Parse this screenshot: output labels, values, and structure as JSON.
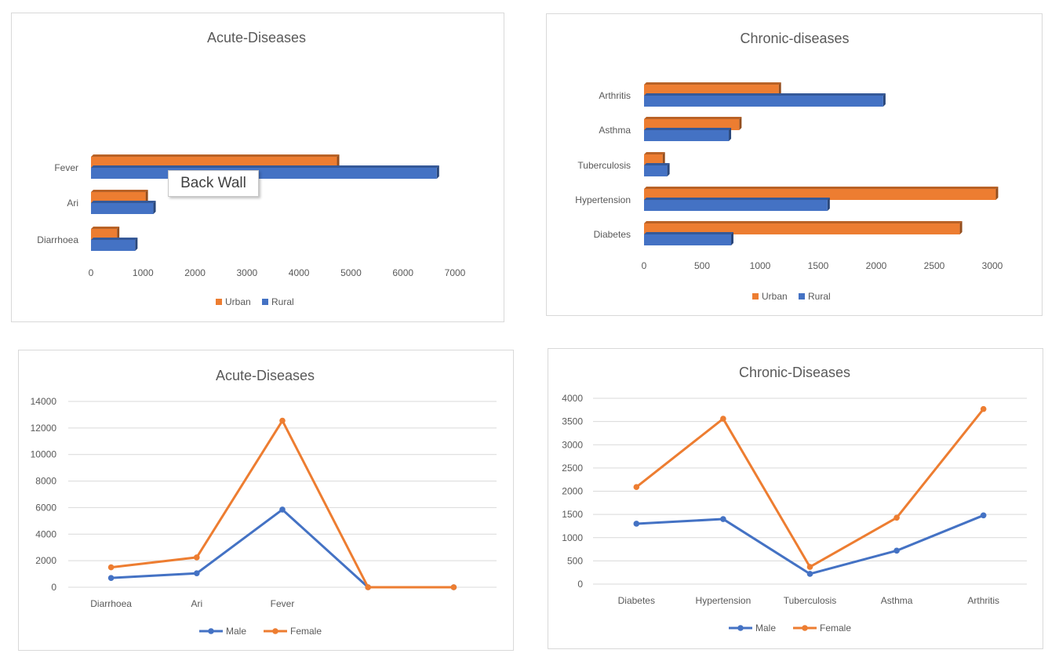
{
  "colors": {
    "rural": "#4472c4",
    "urban": "#ed7d31",
    "male": "#4472c4",
    "female": "#ed7d31",
    "grid": "#d9d9d9",
    "text": "#595959"
  },
  "tooltip": {
    "label": "Back Wall"
  },
  "chart_data": [
    {
      "type": "bar",
      "orientation": "horizontal",
      "title": "Acute-Diseases",
      "categories": [
        "Diarrhoea",
        "Ari",
        "Fever"
      ],
      "series": [
        {
          "name": "Rural",
          "values": [
            850,
            1200,
            6650
          ]
        },
        {
          "name": "Urban",
          "values": [
            500,
            1050,
            4730
          ]
        }
      ],
      "xlim": [
        0,
        7000
      ],
      "xticks": [
        0,
        1000,
        2000,
        3000,
        4000,
        5000,
        6000,
        7000
      ],
      "legend": {
        "position": "bottom",
        "order": [
          "Urban",
          "Rural"
        ]
      },
      "grid": false
    },
    {
      "type": "bar",
      "orientation": "horizontal",
      "title": "Chronic-diseases",
      "categories": [
        "Diabetes",
        "Hypertension",
        "Tuberculosis",
        "Asthma",
        "Arthritis"
      ],
      "series": [
        {
          "name": "Rural",
          "values": [
            750,
            1580,
            200,
            730,
            2060
          ]
        },
        {
          "name": "Urban",
          "values": [
            2720,
            3030,
            160,
            820,
            1160
          ]
        }
      ],
      "xlim": [
        0,
        3000
      ],
      "xticks": [
        0,
        500,
        1000,
        1500,
        2000,
        2500,
        3000
      ],
      "legend": {
        "position": "bottom",
        "order": [
          "Urban",
          "Rural"
        ]
      },
      "grid": false
    },
    {
      "type": "line",
      "title": "Acute-Diseases",
      "categories": [
        "Diarrhoea",
        "Ari",
        "Fever",
        "",
        ""
      ],
      "series": [
        {
          "name": "Male",
          "values": [
            700,
            1050,
            5850,
            0,
            0
          ]
        },
        {
          "name": "Female",
          "values": [
            1500,
            2250,
            12550,
            0,
            0
          ]
        }
      ],
      "ylim": [
        0,
        14000
      ],
      "yticks": [
        0,
        2000,
        4000,
        6000,
        8000,
        10000,
        12000,
        14000
      ],
      "legend": {
        "position": "bottom"
      },
      "grid": true
    },
    {
      "type": "line",
      "title": "Chronic-Diseases",
      "categories": [
        "Diabetes",
        "Hypertension",
        "Tuberculosis",
        "Asthma",
        "Arthritis"
      ],
      "series": [
        {
          "name": "Male",
          "values": [
            1300,
            1400,
            220,
            720,
            1480
          ]
        },
        {
          "name": "Female",
          "values": [
            2090,
            3560,
            370,
            1430,
            3770
          ]
        }
      ],
      "ylim": [
        0,
        4000
      ],
      "yticks": [
        0,
        500,
        1000,
        1500,
        2000,
        2500,
        3000,
        3500,
        4000
      ],
      "legend": {
        "position": "bottom"
      },
      "grid": true
    }
  ]
}
